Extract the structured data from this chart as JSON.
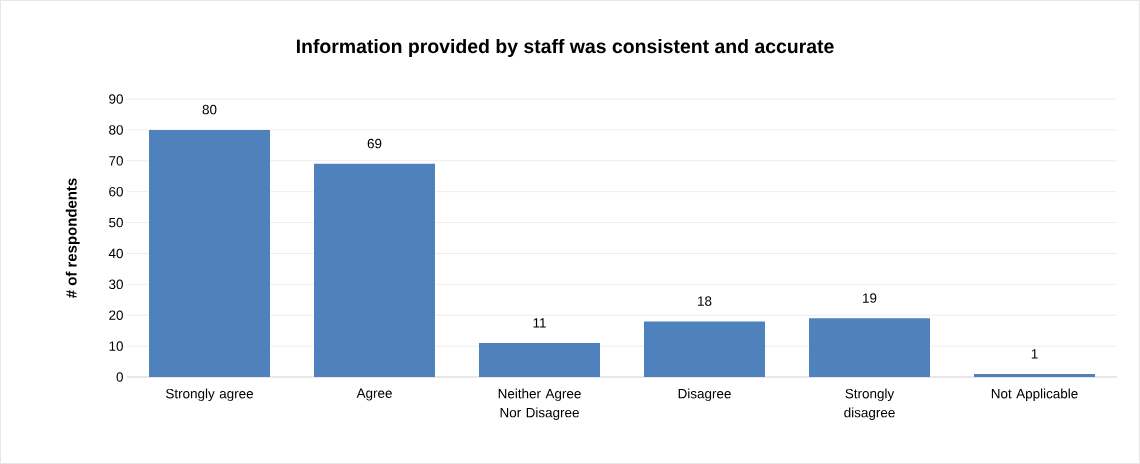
{
  "chart_data": {
    "type": "bar",
    "title": "Information provided by staff was consistent and accurate",
    "ylabel": "# of respondents",
    "categories": [
      "Strongly agree",
      "Agree",
      "Neither Agree Nor Disagree",
      "Disagree",
      "Strongly disagree",
      "Not Applicable"
    ],
    "values": [
      80,
      69,
      11,
      18,
      19,
      1
    ],
    "color": "#4f81bd",
    "ylim": [
      0,
      90
    ],
    "yticks": [
      0,
      10,
      20,
      30,
      40,
      50,
      60,
      70,
      80,
      90
    ],
    "grid": "y",
    "data_labels": true
  }
}
